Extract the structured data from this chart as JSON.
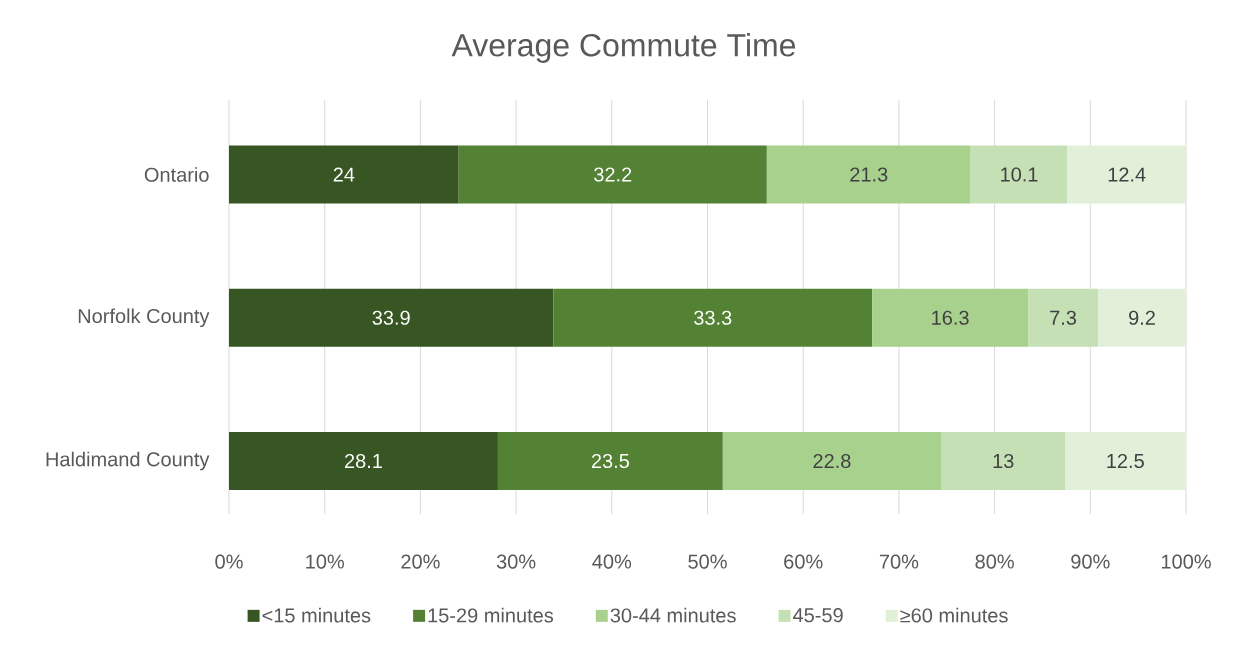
{
  "chart_data": {
    "type": "bar",
    "orientation": "horizontal",
    "stacked": true,
    "title": "Average Commute Time",
    "categories": [
      "Ontario",
      "Norfolk County",
      "Haldimand County"
    ],
    "series": [
      {
        "name": "<15 minutes",
        "color": "#375623",
        "values": [
          24,
          33.9,
          28.1
        ]
      },
      {
        "name": "15-29 minutes",
        "color": "#548235",
        "values": [
          32.2,
          33.3,
          23.5
        ]
      },
      {
        "name": "30-44 minutes",
        "color": "#a9d18e",
        "values": [
          21.3,
          16.3,
          22.8
        ]
      },
      {
        "name": "45-59",
        "color": "#c5e0b4",
        "values": [
          10.1,
          7.3,
          13
        ]
      },
      {
        "name": "≥60 minutes",
        "color": "#e2f0d9",
        "values": [
          12.4,
          9.2,
          12.5
        ]
      }
    ],
    "xlim": [
      0,
      100
    ],
    "xticks": [
      {
        "value": 0,
        "label": "0%"
      },
      {
        "value": 10,
        "label": "10%"
      },
      {
        "value": 20,
        "label": "20%"
      },
      {
        "value": 30,
        "label": "30%"
      },
      {
        "value": 40,
        "label": "40%"
      },
      {
        "value": 50,
        "label": "50%"
      },
      {
        "value": 60,
        "label": "60%"
      },
      {
        "value": 70,
        "label": "70%"
      },
      {
        "value": 80,
        "label": "80%"
      },
      {
        "value": 90,
        "label": "90%"
      },
      {
        "value": 100,
        "label": "100%"
      }
    ],
    "grid": "x",
    "legend": "bottom",
    "data_labels": true
  }
}
